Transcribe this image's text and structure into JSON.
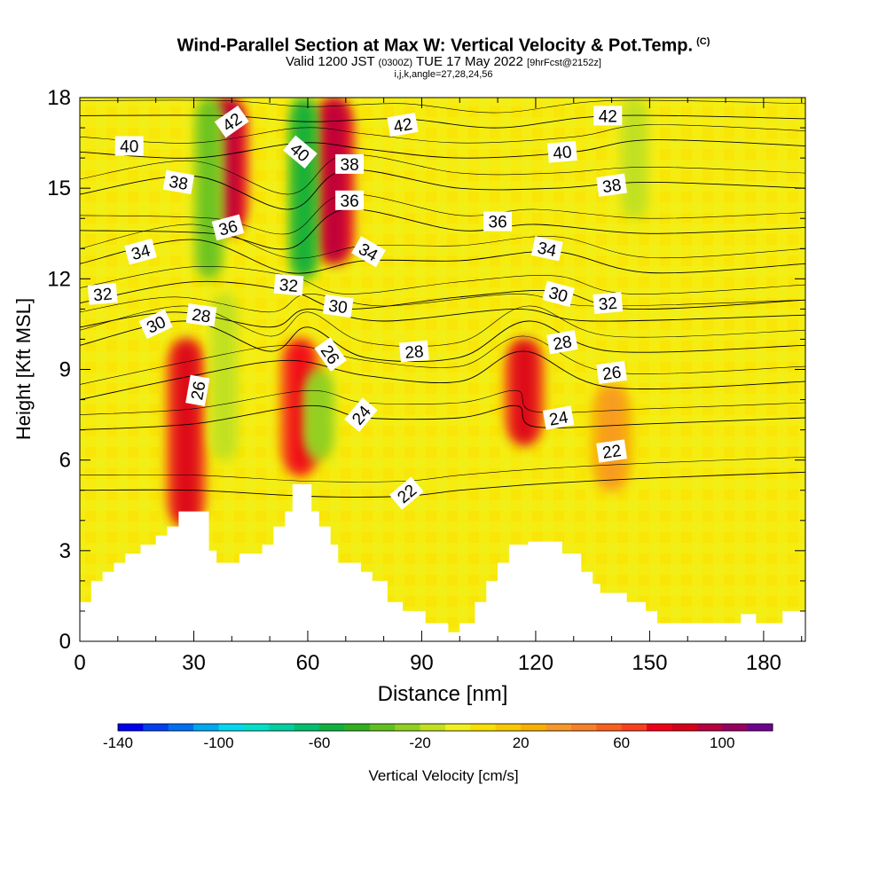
{
  "title": {
    "main": "Wind-Parallel Section at Max W: Vertical Velocity & Pot.Temp.",
    "tag": "(C)",
    "valid_prefix": "Valid 1200 JST",
    "valid_utc": "(0300Z)",
    "valid_date": "TUE 17 May 2022",
    "forecast": "[9hrFcst@2152z]",
    "indices": "i,j,k,angle=27,28,24,56"
  },
  "chart_data": {
    "type": "heatmap",
    "xlabel": "Distance [nm]",
    "ylabel": "Height [Kft MSL]",
    "xlim": [
      0,
      191
    ],
    "ylim": [
      0,
      18
    ],
    "x_ticks": [
      0,
      30,
      60,
      90,
      120,
      150,
      180
    ],
    "y_ticks": [
      0,
      3,
      6,
      9,
      12,
      15,
      18
    ],
    "colorbar": {
      "label": "Vertical Velocity [cm/s]",
      "min": -140,
      "max": 120,
      "step": 10,
      "tick_labels": [
        -140,
        -100,
        -60,
        -20,
        20,
        60,
        100
      ],
      "colors": [
        "#0000f0",
        "#0040f0",
        "#0070f0",
        "#00a8f0",
        "#00d8f0",
        "#00e0c8",
        "#00d0a0",
        "#00c070",
        "#10b040",
        "#30b020",
        "#60c020",
        "#90d020",
        "#c0e020",
        "#f0f020",
        "#f8e000",
        "#f8c800",
        "#f8b000",
        "#f89828",
        "#f88028",
        "#f86020",
        "#f84020",
        "#f00018",
        "#d80018",
        "#b80040",
        "#980060",
        "#700090"
      ]
    },
    "terrain_profile": [
      [
        0,
        1.3
      ],
      [
        3,
        1.3
      ],
      [
        3,
        2.0
      ],
      [
        6,
        2.0
      ],
      [
        6,
        2.3
      ],
      [
        9,
        2.3
      ],
      [
        9,
        2.6
      ],
      [
        12,
        2.6
      ],
      [
        12,
        2.9
      ],
      [
        16,
        2.9
      ],
      [
        16,
        3.2
      ],
      [
        20,
        3.2
      ],
      [
        20,
        3.5
      ],
      [
        23,
        3.5
      ],
      [
        23,
        3.8
      ],
      [
        26,
        3.8
      ],
      [
        26,
        4.3
      ],
      [
        34,
        4.3
      ],
      [
        34,
        3.0
      ],
      [
        36,
        3.0
      ],
      [
        36,
        2.6
      ],
      [
        42,
        2.6
      ],
      [
        42,
        2.9
      ],
      [
        48,
        2.9
      ],
      [
        48,
        3.2
      ],
      [
        51,
        3.2
      ],
      [
        51,
        3.8
      ],
      [
        54,
        3.8
      ],
      [
        54,
        4.3
      ],
      [
        56,
        4.3
      ],
      [
        56,
        5.2
      ],
      [
        61,
        5.2
      ],
      [
        61,
        4.3
      ],
      [
        63,
        4.3
      ],
      [
        63,
        3.8
      ],
      [
        66,
        3.8
      ],
      [
        66,
        3.2
      ],
      [
        68,
        3.2
      ],
      [
        68,
        2.6
      ],
      [
        74,
        2.6
      ],
      [
        74,
        2.3
      ],
      [
        77,
        2.3
      ],
      [
        77,
        2.0
      ],
      [
        81,
        2.0
      ],
      [
        81,
        1.3
      ],
      [
        85,
        1.3
      ],
      [
        85,
        1.0
      ],
      [
        91,
        1.0
      ],
      [
        91,
        0.6
      ],
      [
        97,
        0.6
      ],
      [
        97,
        0.3
      ],
      [
        100,
        0.3
      ],
      [
        100,
        0.6
      ],
      [
        104,
        0.6
      ],
      [
        104,
        1.3
      ],
      [
        107,
        1.3
      ],
      [
        107,
        2.0
      ],
      [
        110,
        2.0
      ],
      [
        110,
        2.6
      ],
      [
        113,
        2.6
      ],
      [
        113,
        3.2
      ],
      [
        118,
        3.2
      ],
      [
        118,
        3.3
      ],
      [
        127,
        3.3
      ],
      [
        127,
        2.9
      ],
      [
        132,
        2.9
      ],
      [
        132,
        2.3
      ],
      [
        135,
        2.3
      ],
      [
        135,
        1.9
      ],
      [
        137,
        1.9
      ],
      [
        137,
        1.6
      ],
      [
        144,
        1.6
      ],
      [
        144,
        1.3
      ],
      [
        149,
        1.3
      ],
      [
        149,
        1.0
      ],
      [
        152,
        1.0
      ],
      [
        152,
        0.6
      ],
      [
        174,
        0.6
      ],
      [
        174,
        0.9
      ],
      [
        178,
        0.9
      ],
      [
        178,
        0.6
      ],
      [
        185,
        0.6
      ],
      [
        185,
        1.0
      ],
      [
        191,
        1.0
      ]
    ],
    "updraft_columns": [
      {
        "x": 28,
        "y0": 3.8,
        "y1": 10.0,
        "w": 80
      },
      {
        "x": 39,
        "y0": 13.5,
        "y1": 18.0,
        "w": 90
      },
      {
        "x": 58,
        "y0": 5.5,
        "y1": 10.0,
        "w": 70
      },
      {
        "x": 67,
        "y0": 12.5,
        "y1": 18.0,
        "w": 90
      },
      {
        "x": 117,
        "y0": 6.5,
        "y1": 10.0,
        "w": 80
      },
      {
        "x": 140,
        "y0": 5.0,
        "y1": 8.5,
        "w": 30
      }
    ],
    "downdraft_columns": [
      {
        "x": 34,
        "y0": 12.0,
        "y1": 18.0,
        "w": -40
      },
      {
        "x": 38,
        "y0": 6.0,
        "y1": 11.5,
        "w": -20
      },
      {
        "x": 59,
        "y0": 12.0,
        "y1": 18.0,
        "w": -60
      },
      {
        "x": 63,
        "y0": 6.0,
        "y1": 9.0,
        "w": -30
      },
      {
        "x": 146,
        "y0": 14.0,
        "y1": 18.0,
        "w": -20
      }
    ],
    "theta_contours": [
      {
        "value": 22,
        "levels": [
          [
            0,
            5.0
          ],
          [
            30,
            5.0
          ],
          [
            60,
            4.8
          ],
          [
            85,
            4.8
          ],
          [
            100,
            5.0
          ],
          [
            120,
            5.2
          ],
          [
            150,
            5.4
          ],
          [
            191,
            5.6
          ]
        ]
      },
      {
        "value": 24,
        "levels": [
          [
            0,
            7.0
          ],
          [
            30,
            7.2
          ],
          [
            60,
            7.8
          ],
          [
            75,
            7.4
          ],
          [
            100,
            7.4
          ],
          [
            115,
            7.8
          ],
          [
            120,
            7.1
          ],
          [
            150,
            7.2
          ],
          [
            191,
            7.4
          ]
        ]
      },
      {
        "value": 26,
        "levels": [
          [
            0,
            8.0
          ],
          [
            30,
            8.8
          ],
          [
            55,
            9.3
          ],
          [
            75,
            8.8
          ],
          [
            100,
            8.6
          ],
          [
            117,
            9.6
          ],
          [
            140,
            8.4
          ],
          [
            191,
            8.6
          ]
        ]
      },
      {
        "value": 28,
        "levels": [
          [
            0,
            9.8
          ],
          [
            28,
            10.6
          ],
          [
            50,
            9.6
          ],
          [
            60,
            10.4
          ],
          [
            75,
            9.4
          ],
          [
            100,
            9.4
          ],
          [
            118,
            10.6
          ],
          [
            140,
            9.6
          ],
          [
            191,
            9.8
          ]
        ]
      },
      {
        "value": 30,
        "levels": [
          [
            0,
            10.4
          ],
          [
            25,
            10.9
          ],
          [
            50,
            10.4
          ],
          [
            60,
            11.0
          ],
          [
            80,
            10.6
          ],
          [
            115,
            11.0
          ],
          [
            135,
            10.6
          ],
          [
            191,
            10.8
          ]
        ]
      },
      {
        "value": 32,
        "levels": [
          [
            0,
            11.2
          ],
          [
            30,
            11.9
          ],
          [
            55,
            11.6
          ],
          [
            70,
            11.0
          ],
          [
            100,
            11.4
          ],
          [
            125,
            11.6
          ],
          [
            145,
            11.0
          ],
          [
            191,
            11.3
          ]
        ]
      },
      {
        "value": 34,
        "levels": [
          [
            0,
            12.5
          ],
          [
            30,
            13.3
          ],
          [
            55,
            12.2
          ],
          [
            75,
            12.6
          ],
          [
            100,
            12.6
          ],
          [
            125,
            12.9
          ],
          [
            150,
            12.2
          ],
          [
            191,
            12.5
          ]
        ]
      },
      {
        "value": 36,
        "levels": [
          [
            0,
            13.6
          ],
          [
            35,
            13.5
          ],
          [
            55,
            13.0
          ],
          [
            70,
            14.3
          ],
          [
            100,
            13.6
          ],
          [
            120,
            13.8
          ],
          [
            150,
            13.5
          ],
          [
            191,
            13.7
          ]
        ]
      },
      {
        "value": 38,
        "levels": [
          [
            0,
            14.8
          ],
          [
            30,
            15.4
          ],
          [
            55,
            14.3
          ],
          [
            70,
            15.6
          ],
          [
            100,
            15.0
          ],
          [
            125,
            15.0
          ],
          [
            150,
            15.2
          ],
          [
            191,
            15.0
          ]
        ]
      },
      {
        "value": 40,
        "levels": [
          [
            0,
            16.2
          ],
          [
            30,
            16.0
          ],
          [
            58,
            16.5
          ],
          [
            75,
            16.3
          ],
          [
            100,
            16.0
          ],
          [
            130,
            16.2
          ],
          [
            150,
            16.6
          ],
          [
            191,
            16.4
          ]
        ]
      },
      {
        "value": 42,
        "levels": [
          [
            0,
            17.4
          ],
          [
            38,
            17.4
          ],
          [
            60,
            17.2
          ],
          [
            85,
            17.3
          ],
          [
            110,
            17.0
          ],
          [
            140,
            17.4
          ],
          [
            191,
            17.3
          ]
        ]
      }
    ],
    "contour_labels": [
      {
        "text": "22",
        "x": 86,
        "y": 4.9,
        "angle": -40
      },
      {
        "text": "22",
        "x": 140,
        "y": 6.3,
        "angle": -8
      },
      {
        "text": "24",
        "x": 74,
        "y": 7.5,
        "angle": -50
      },
      {
        "text": "24",
        "x": 126,
        "y": 7.4,
        "angle": -10
      },
      {
        "text": "26",
        "x": 31,
        "y": 8.3,
        "angle": -80
      },
      {
        "text": "26",
        "x": 66,
        "y": 9.5,
        "angle": 55
      },
      {
        "text": "26",
        "x": 140,
        "y": 8.9,
        "angle": -8
      },
      {
        "text": "28",
        "x": 32,
        "y": 10.8,
        "angle": 8
      },
      {
        "text": "28",
        "x": 88,
        "y": 9.6,
        "angle": -5
      },
      {
        "text": "28",
        "x": 127,
        "y": 9.9,
        "angle": -10
      },
      {
        "text": "30",
        "x": 20,
        "y": 10.5,
        "angle": -25
      },
      {
        "text": "30",
        "x": 68,
        "y": 11.1,
        "angle": 8
      },
      {
        "text": "30",
        "x": 126,
        "y": 11.5,
        "angle": 15
      },
      {
        "text": "32",
        "x": 6,
        "y": 11.5,
        "angle": -5
      },
      {
        "text": "32",
        "x": 55,
        "y": 11.8,
        "angle": 5
      },
      {
        "text": "32",
        "x": 139,
        "y": 11.2,
        "angle": -5
      },
      {
        "text": "34",
        "x": 16,
        "y": 12.9,
        "angle": -15
      },
      {
        "text": "34",
        "x": 76,
        "y": 12.9,
        "angle": 30
      },
      {
        "text": "34",
        "x": 123,
        "y": 13.0,
        "angle": 12
      },
      {
        "text": "36",
        "x": 39,
        "y": 13.7,
        "angle": -15
      },
      {
        "text": "36",
        "x": 71,
        "y": 14.6,
        "angle": 0
      },
      {
        "text": "36",
        "x": 110,
        "y": 13.9,
        "angle": 0
      },
      {
        "text": "38",
        "x": 26,
        "y": 15.2,
        "angle": 10
      },
      {
        "text": "38",
        "x": 71,
        "y": 15.8,
        "angle": 0
      },
      {
        "text": "38",
        "x": 140,
        "y": 15.1,
        "angle": -8
      },
      {
        "text": "40",
        "x": 13,
        "y": 16.4,
        "angle": 0
      },
      {
        "text": "40",
        "x": 58,
        "y": 16.2,
        "angle": 40
      },
      {
        "text": "40",
        "x": 127,
        "y": 16.2,
        "angle": -5
      },
      {
        "text": "42",
        "x": 40,
        "y": 17.2,
        "angle": -35
      },
      {
        "text": "42",
        "x": 85,
        "y": 17.1,
        "angle": -10
      },
      {
        "text": "42",
        "x": 139,
        "y": 17.4,
        "angle": 0
      }
    ]
  }
}
